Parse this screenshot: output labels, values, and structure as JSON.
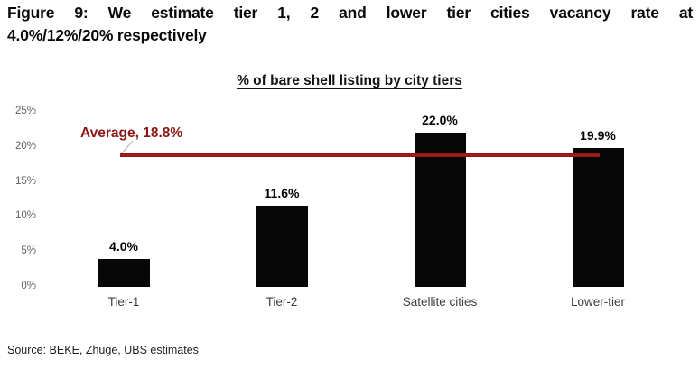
{
  "figure": {
    "title_line1": "Figure 9: We estimate tier 1, 2 and lower tier cities vacancy rate at",
    "title_line2": "4.0%/12%/20% respectively"
  },
  "chart_data": {
    "type": "bar",
    "title": "% of bare shell listing by city tiers",
    "categories": [
      "Tier-1",
      "Tier-2",
      "Satellite cities",
      "Lower-tier"
    ],
    "values": [
      4.0,
      11.6,
      22.0,
      19.9
    ],
    "value_labels": [
      "4.0%",
      "11.6%",
      "22.0%",
      "19.9%"
    ],
    "ylim": [
      0,
      25
    ],
    "ytick_step": 5,
    "ytick_labels": [
      "0%",
      "5%",
      "10%",
      "15%",
      "20%",
      "25%"
    ],
    "grid": false,
    "legend": false,
    "average": {
      "value": 18.8,
      "label": "Average, 18.8%"
    },
    "colors": {
      "bar": "#070707",
      "average_line": "#8f1414",
      "average_label": "#8c1616",
      "tick_label": "#616161",
      "category_label": "#3f3f3f"
    }
  },
  "source": {
    "text": "Source: BEKE, Zhuge, UBS estimates"
  }
}
